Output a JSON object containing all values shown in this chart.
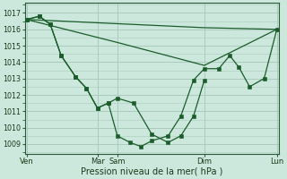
{
  "background_color": "#cce8dc",
  "grid_color": "#aaccbb",
  "line_color": "#1a5c2a",
  "xlabel": "Pression niveau de la mer( hPa )",
  "ylim": [
    1008.4,
    1017.6
  ],
  "yticks": [
    1009,
    1010,
    1011,
    1012,
    1013,
    1014,
    1015,
    1016,
    1017
  ],
  "xlim": [
    0,
    7.0
  ],
  "xtick_positions": [
    0.05,
    2.0,
    2.55,
    4.95,
    6.95
  ],
  "xtick_labels": [
    "Ven",
    "Mar",
    "Sam",
    "Dim",
    "Lun"
  ],
  "line1_x": [
    0.05,
    0.4,
    0.7,
    1.0,
    1.4,
    1.7,
    2.0,
    2.3,
    2.55,
    3.0,
    3.5,
    3.95,
    4.3,
    4.65,
    4.95
  ],
  "line1_y": [
    1016.6,
    1016.8,
    1016.3,
    1014.4,
    1013.1,
    1012.4,
    1011.2,
    1011.5,
    1011.8,
    1011.5,
    1009.6,
    1009.1,
    1009.5,
    1010.7,
    1012.9
  ],
  "line2_x": [
    0.05,
    0.4,
    0.7,
    1.0,
    1.4,
    1.7,
    2.0,
    2.3,
    2.55,
    2.9,
    3.2,
    3.5,
    3.95,
    4.3,
    4.65,
    4.95,
    5.35,
    5.65,
    5.9,
    6.2,
    6.6,
    6.95
  ],
  "line2_y": [
    1016.6,
    1016.8,
    1016.3,
    1014.4,
    1013.1,
    1012.4,
    1011.2,
    1011.5,
    1009.5,
    1009.1,
    1008.85,
    1009.2,
    1009.5,
    1010.7,
    1012.9,
    1013.6,
    1013.6,
    1014.4,
    1013.7,
    1012.5,
    1013.0,
    1016.0
  ],
  "line3_x": [
    0.05,
    4.95,
    6.95
  ],
  "line3_y": [
    1016.6,
    1016.1,
    1016.0
  ],
  "line4_x": [
    0.05,
    2.55,
    4.95,
    6.95
  ],
  "line4_y": [
    1016.6,
    1015.2,
    1013.8,
    1016.0
  ]
}
